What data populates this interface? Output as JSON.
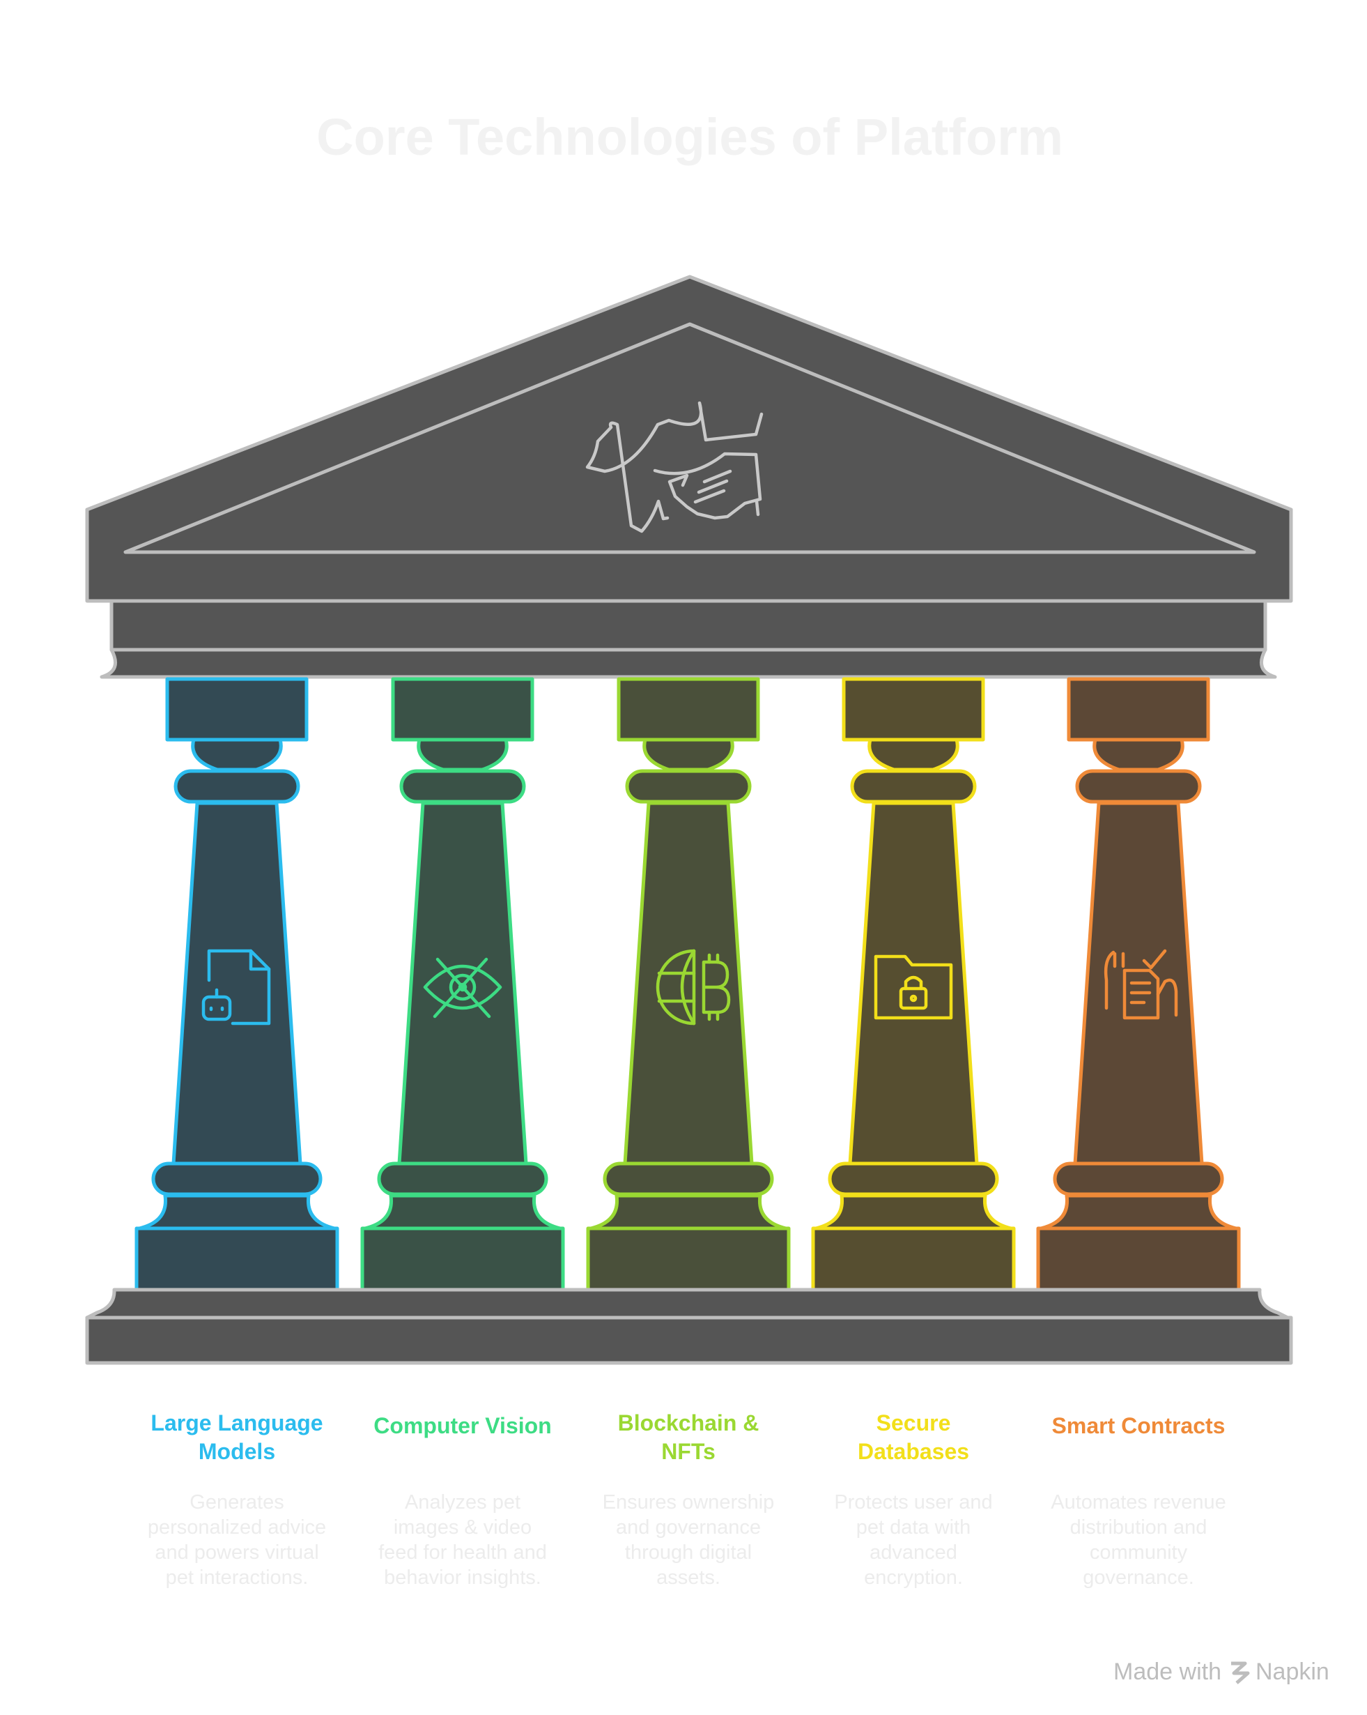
{
  "title": "Core Technologies of Platform",
  "colors": {
    "background": "#ffffff",
    "temple_fill": "#555555",
    "temple_stroke": "#bdbdbd",
    "title_text": "#f2f2f2",
    "desc_text": "#ececec",
    "watermark_text": "#bdbdbd"
  },
  "pediment_icon": "dog-hand-icon",
  "pillars": [
    {
      "label_lines": [
        "Large Language",
        "Models"
      ],
      "icon": "robot-document-icon",
      "color": "#2bbcee",
      "fill": "#334a54",
      "desc_lines": [
        "Generates",
        "personalized advice",
        "and powers virtual",
        "pet interactions."
      ]
    },
    {
      "label_lines": [
        "Computer Vision"
      ],
      "icon": "eye-slash-icon",
      "color": "#3ddc84",
      "fill": "#3a5247",
      "desc_lines": [
        "Analyzes pet",
        "images & video",
        "feed for health and",
        "behavior insights."
      ]
    },
    {
      "label_lines": [
        "Blockchain &",
        "NFTs"
      ],
      "icon": "globe-bitcoin-icon",
      "color": "#9ad832",
      "fill": "#4a503a",
      "desc_lines": [
        "Ensures ownership",
        "and governance",
        "through digital",
        "assets."
      ]
    },
    {
      "label_lines": [
        "Secure",
        "Databases"
      ],
      "icon": "locked-folder-icon",
      "color": "#f2df1a",
      "fill": "#564e30",
      "desc_lines": [
        "Protects user and",
        "pet data with",
        "advanced",
        "encryption."
      ]
    },
    {
      "label_lines": [
        "Smart Contracts"
      ],
      "icon": "contract-hands-icon",
      "color": "#ef8a38",
      "fill": "#5c4836",
      "desc_lines": [
        "Automates revenue",
        "distribution and",
        "community",
        "governance."
      ]
    }
  ],
  "watermark": {
    "prefix": "Made with",
    "brand": "Napkin"
  }
}
